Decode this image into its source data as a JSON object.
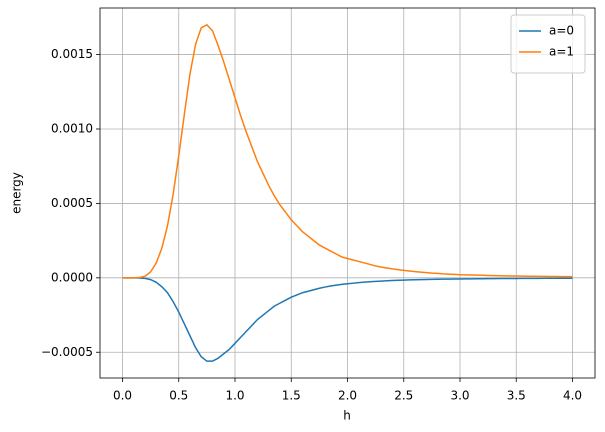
{
  "chart_data": {
    "type": "line",
    "xlabel": "h",
    "ylabel": "energy",
    "x": [
      0,
      0.05,
      0.1,
      0.15,
      0.2,
      0.25,
      0.3,
      0.35,
      0.4,
      0.45,
      0.5,
      0.55,
      0.6,
      0.65,
      0.7,
      0.75,
      0.8,
      0.85,
      0.9,
      0.95,
      1.0,
      1.05,
      1.1,
      1.15,
      1.2,
      1.25,
      1.3,
      1.35,
      1.4,
      1.45,
      1.5,
      1.55,
      1.6,
      1.65,
      1.7,
      1.75,
      1.8,
      1.85,
      1.9,
      1.95,
      2.0,
      2.05,
      2.1,
      2.15,
      2.2,
      2.25,
      2.3,
      2.35,
      2.4,
      2.45,
      2.5,
      2.55,
      2.6,
      2.65,
      2.7,
      2.75,
      2.8,
      2.85,
      2.9,
      2.95,
      3.0,
      3.05,
      3.1,
      3.15,
      3.2,
      3.25,
      3.3,
      3.35,
      3.4,
      3.45,
      3.5,
      3.55,
      3.6,
      3.65,
      3.7,
      3.75,
      3.8,
      3.85,
      3.9,
      3.95,
      4.0
    ],
    "series": [
      {
        "name": "a=0",
        "color": "#1f77b4",
        "values": [
          0,
          0,
          0,
          -1e-06,
          -4e-06,
          -1.2e-05,
          -3e-05,
          -6e-05,
          -0.0001,
          -0.00016,
          -0.00023,
          -0.00031,
          -0.00039,
          -0.00047,
          -0.00053,
          -0.00056,
          -0.00056,
          -0.00054,
          -0.00051,
          -0.00048,
          -0.00044,
          -0.0004,
          -0.00036,
          -0.00032,
          -0.00028,
          -0.00025,
          -0.00022,
          -0.00019,
          -0.00017,
          -0.00015,
          -0.00013,
          -0.000115,
          -0.0001,
          -9e-05,
          -8e-05,
          -7e-05,
          -6.2e-05,
          -5.5e-05,
          -4.9e-05,
          -4.4e-05,
          -4e-05,
          -3.6e-05,
          -3.2e-05,
          -2.9e-05,
          -2.6e-05,
          -2.4e-05,
          -2.2e-05,
          -2e-05,
          -1.8e-05,
          -1.6e-05,
          -1.5e-05,
          -1.4e-05,
          -1.3e-05,
          -1.2e-05,
          -1.1e-05,
          -1e-05,
          -9.5e-06,
          -9e-06,
          -8.5e-06,
          -8e-06,
          -7.5e-06,
          -7e-06,
          -6.6e-06,
          -6.2e-06,
          -5.8e-06,
          -5.5e-06,
          -5.2e-06,
          -4.9e-06,
          -4.6e-06,
          -4.4e-06,
          -4.2e-06,
          -4e-06,
          -3.8e-06,
          -3.6e-06,
          -3.4e-06,
          -3.2e-06,
          -3e-06,
          -2.9e-06,
          -2.8e-06,
          -2.7e-06,
          -2.6e-06
        ]
      },
      {
        "name": "a=1",
        "color": "#ff7f0e",
        "values": [
          0,
          0,
          0,
          2e-06,
          1e-05,
          4e-05,
          0.0001,
          0.0002,
          0.00035,
          0.00056,
          0.00082,
          0.0011,
          0.00137,
          0.00157,
          0.00168,
          0.0017,
          0.00166,
          0.00156,
          0.00145,
          0.00133,
          0.00121,
          0.00109,
          0.00098,
          0.00088,
          0.00078,
          0.0007,
          0.00062,
          0.00055,
          0.00049,
          0.00044,
          0.00039,
          0.00035,
          0.00031,
          0.00028,
          0.00025,
          0.00022,
          0.0002,
          0.00018,
          0.00016,
          0.00014,
          0.00013,
          0.00012,
          0.00011,
          0.0001,
          9e-05,
          8e-05,
          7.2e-05,
          6.6e-05,
          6e-05,
          5.5e-05,
          5e-05,
          4.6e-05,
          4.2e-05,
          3.8e-05,
          3.5e-05,
          3.2e-05,
          3e-05,
          2.7e-05,
          2.5e-05,
          2.3e-05,
          2.1e-05,
          2e-05,
          1.9e-05,
          1.8e-05,
          1.7e-05,
          1.6e-05,
          1.5e-05,
          1.4e-05,
          1.3e-05,
          1.25e-05,
          1.2e-05,
          1.15e-05,
          1.1e-05,
          1.05e-05,
          1e-05,
          9.5e-06,
          9e-06,
          8.8e-06,
          8.5e-06,
          8.2e-06,
          8e-06
        ]
      }
    ],
    "xlim": [
      -0.2,
      4.2
    ],
    "ylim": [
      -0.000673,
      0.001813
    ],
    "xticks": [
      {
        "value": 0,
        "label": "0.0"
      },
      {
        "value": 0.5,
        "label": "0.5"
      },
      {
        "value": 1,
        "label": "1.0"
      },
      {
        "value": 1.5,
        "label": "1.5"
      },
      {
        "value": 2,
        "label": "2.0"
      },
      {
        "value": 2.5,
        "label": "2.5"
      },
      {
        "value": 3,
        "label": "3.0"
      },
      {
        "value": 3.5,
        "label": "3.5"
      },
      {
        "value": 4,
        "label": "4.0"
      }
    ],
    "yticks": [
      {
        "value": -0.0005,
        "label": "−0.0005"
      },
      {
        "value": 0,
        "label": "0.0000"
      },
      {
        "value": 0.0005,
        "label": "0.0005"
      },
      {
        "value": 0.001,
        "label": "0.0010"
      },
      {
        "value": 0.0015,
        "label": "0.0015"
      }
    ],
    "grid": true,
    "legend": "upper right"
  }
}
